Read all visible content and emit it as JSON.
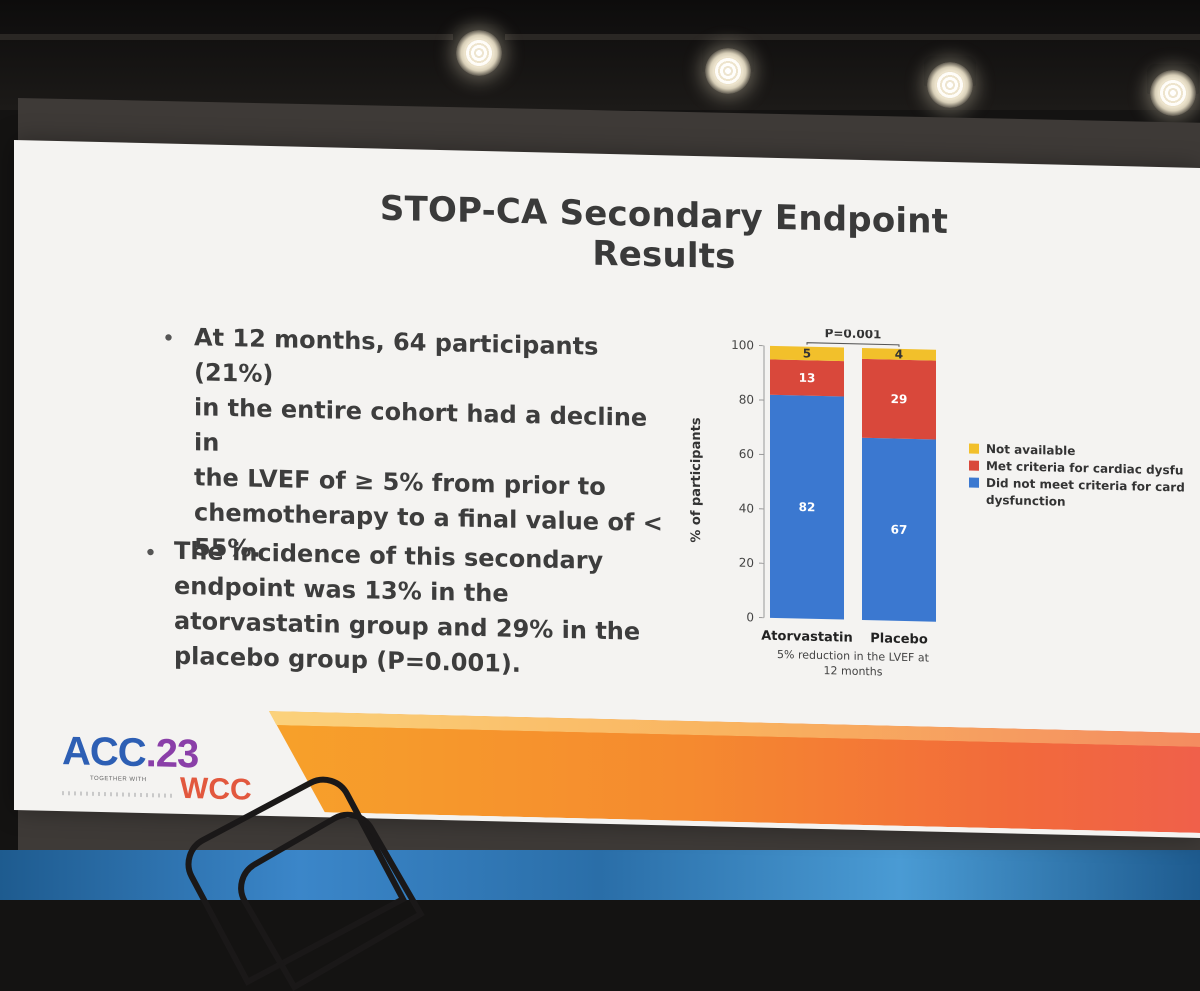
{
  "slide": {
    "title": "STOP-CA Secondary Endpoint Results",
    "bullets": [
      {
        "lines": [
          "At 12 months, 64 participants (21%)",
          "in the entire cohort had a decline in",
          "the LVEF of ≥ 5% from prior to",
          "chemotherapy to a final value of <",
          "55%."
        ]
      },
      {
        "lines": [
          "The incidence of this secondary",
          "endpoint was 13% in the",
          "atorvastatin group and 29% in the",
          "placebo group (P=0.001)."
        ]
      }
    ],
    "logo": {
      "acc": "ACC",
      "year": ".23",
      "tagline": "TOGETHER WITH",
      "wcc": "WCC"
    }
  },
  "chart_data": {
    "type": "bar",
    "stacked": true,
    "categories": [
      "Atorvastatin",
      "Placebo"
    ],
    "series": [
      {
        "name": "Did not meet criteria for cardiac dysfunction",
        "values": [
          82,
          67
        ],
        "color": "#3b78d0"
      },
      {
        "name": "Met criteria for cardiac dysfunction",
        "values": [
          13,
          29
        ],
        "color": "#d9483b"
      },
      {
        "name": "Not available",
        "values": [
          5,
          4
        ],
        "color": "#f2c02b"
      }
    ],
    "ylabel": "% of participants",
    "xlabel": "5% reduction in the LVEF at 12 months",
    "xlabel_lines": [
      "5% reduction in the LVEF at",
      "12 months"
    ],
    "ylim": [
      0,
      100
    ],
    "yticks": [
      0,
      20,
      40,
      60,
      80,
      100
    ],
    "annotation": "P=0.001",
    "legend_position": "right",
    "legend_order": [
      "Not available",
      "Met criteria for cardiac dysfunction",
      "Did not meet criteria for cardiac dysfunction"
    ],
    "legend_lines": {
      "Not available": [
        "Not available"
      ],
      "Met criteria for cardiac dysfunction": [
        "Met criteria for cardiac dysfunction"
      ],
      "Did not meet criteria for cardiac dysfunction": [
        "Did not meet criteria for cardiac",
        "dysfunction"
      ]
    },
    "grid": false
  }
}
